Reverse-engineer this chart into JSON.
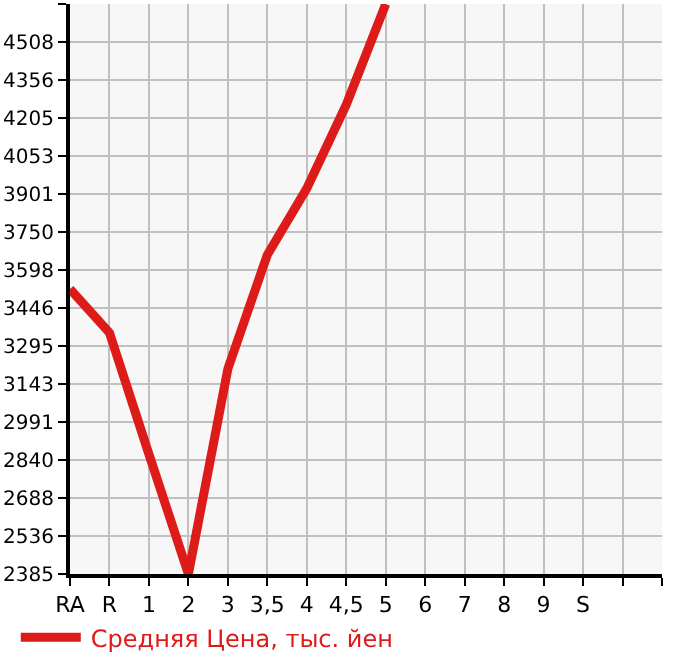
{
  "chart_data": {
    "type": "line",
    "categories": [
      "RA",
      "R",
      "1",
      "2",
      "3",
      "3,5",
      "4",
      "4,5",
      "5",
      "6",
      "7",
      "8",
      "9",
      "S",
      null,
      null
    ],
    "series": [
      {
        "name": "Средняя Цена, тыс. йен",
        "color": "#dd1c1a",
        "values": [
          3522,
          3348,
          2863,
          2385,
          3204,
          3659,
          3924,
          4258,
          4660,
          null,
          null,
          null,
          null,
          null,
          null,
          null
        ]
      }
    ],
    "ylim": [
      2385,
      4660
    ],
    "yticks": [
      2385,
      2536,
      2688,
      2840,
      2991,
      3143,
      3295,
      3446,
      3598,
      3750,
      3901,
      4053,
      4205,
      4356,
      4508,
      {
        "value": 4660,
        "label": null
      }
    ],
    "grid": true,
    "legend": "bottom",
    "marker": "none",
    "line_style": "solid"
  }
}
